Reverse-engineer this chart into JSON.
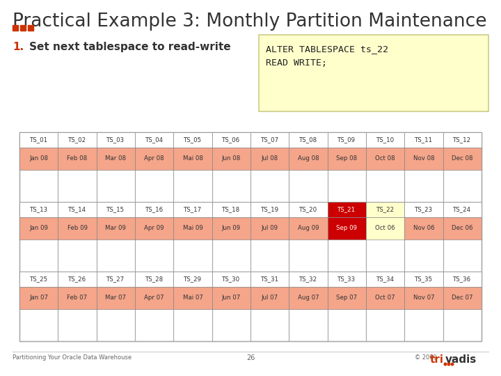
{
  "title": "Practical Example 3: Monthly Partition Maintenance",
  "title_fontsize": 19,
  "title_color": "#333333",
  "bg_color": "#ffffff",
  "step_number": "1.",
  "step_text": "Set next tablespace to read-write",
  "code_text": "ALTER TABLESPACE ts_22\nREAD WRITE;",
  "code_box_color": "#ffffcc",
  "code_box_border": "#cccc88",
  "footer_left": "Partitioning Your Oracle Data Warehouse",
  "footer_center": "26",
  "footer_right": "© 2009",
  "rows": [
    {
      "ts_labels": [
        "TS_01",
        "TS_02",
        "TS_03",
        "TS_04",
        "TS_05",
        "TS_06",
        "TS_07",
        "TS_08",
        "TS_09",
        "TS_10",
        "TS_11",
        "TS_12"
      ],
      "month_labels": [
        "Jan 08",
        "Feb 08",
        "Mar 08",
        "Apr 08",
        "Mai 08",
        "Jun 08",
        "Jul 08",
        "Aug 08",
        "Sep 08",
        "Oct 08",
        "Nov 08",
        "Dec 08"
      ],
      "cell_colors": [
        "#f4a58a",
        "#f4a58a",
        "#f4a58a",
        "#f4a58a",
        "#f4a58a",
        "#f4a58a",
        "#f4a58a",
        "#f4a58a",
        "#f4a58a",
        "#f4a58a",
        "#f4a58a",
        "#f4a58a"
      ],
      "ts_bg_colors": [
        "white",
        "white",
        "white",
        "white",
        "white",
        "white",
        "white",
        "white",
        "white",
        "white",
        "white",
        "white"
      ],
      "ts_txt_colors": [
        "#333333",
        "#333333",
        "#333333",
        "#333333",
        "#333333",
        "#333333",
        "#333333",
        "#333333",
        "#333333",
        "#333333",
        "#333333",
        "#333333"
      ],
      "mo_txt_colors": [
        "#333333",
        "#333333",
        "#333333",
        "#333333",
        "#333333",
        "#333333",
        "#333333",
        "#333333",
        "#333333",
        "#333333",
        "#333333",
        "#333333"
      ]
    },
    {
      "ts_labels": [
        "TS_13",
        "TS_14",
        "TS_15",
        "TS_16",
        "TS_17",
        "TS_18",
        "TS_19",
        "TS_20",
        "TS_21",
        "TS_22",
        "TS_23",
        "TS_24"
      ],
      "month_labels": [
        "Jan 09",
        "Feb 09",
        "Mar 09",
        "Apr 09",
        "Mai 09",
        "Jun 09",
        "Jul 09",
        "Aug 09",
        "Sep 09",
        "Oct 06",
        "Nov 06",
        "Dec 06"
      ],
      "cell_colors": [
        "#f4a58a",
        "#f4a58a",
        "#f4a58a",
        "#f4a58a",
        "#f4a58a",
        "#f4a58a",
        "#f4a58a",
        "#f4a58a",
        "#cc0000",
        "#ffffcc",
        "#f4a58a",
        "#f4a58a"
      ],
      "ts_bg_colors": [
        "white",
        "white",
        "white",
        "white",
        "white",
        "white",
        "white",
        "white",
        "#cc0000",
        "#ffffcc",
        "white",
        "white"
      ],
      "ts_txt_colors": [
        "#333333",
        "#333333",
        "#333333",
        "#333333",
        "#333333",
        "#333333",
        "#333333",
        "#333333",
        "#ffffff",
        "#333333",
        "#333333",
        "#333333"
      ],
      "mo_txt_colors": [
        "#333333",
        "#333333",
        "#333333",
        "#333333",
        "#333333",
        "#333333",
        "#333333",
        "#333333",
        "#ffffff",
        "#333333",
        "#333333",
        "#333333"
      ]
    },
    {
      "ts_labels": [
        "TS_25",
        "TS_26",
        "TS_27",
        "TS_28",
        "TS_29",
        "TS_30",
        "TS_31",
        "TS_32",
        "TS_33",
        "TS_34",
        "TS_35",
        "TS_36"
      ],
      "month_labels": [
        "Jan 07",
        "Feb 07",
        "Mar 07",
        "Apr 07",
        "Mai 07",
        "Jun 07",
        "Jul 07",
        "Aug 07",
        "Sep 07",
        "Oct 07",
        "Nov 07",
        "Dec 07"
      ],
      "cell_colors": [
        "#f4a58a",
        "#f4a58a",
        "#f4a58a",
        "#f4a58a",
        "#f4a58a",
        "#f4a58a",
        "#f4a58a",
        "#f4a58a",
        "#f4a58a",
        "#f4a58a",
        "#f4a58a",
        "#f4a58a"
      ],
      "ts_bg_colors": [
        "white",
        "white",
        "white",
        "white",
        "white",
        "white",
        "white",
        "white",
        "white",
        "white",
        "white",
        "white"
      ],
      "ts_txt_colors": [
        "#333333",
        "#333333",
        "#333333",
        "#333333",
        "#333333",
        "#333333",
        "#333333",
        "#333333",
        "#333333",
        "#333333",
        "#333333",
        "#333333"
      ],
      "mo_txt_colors": [
        "#333333",
        "#333333",
        "#333333",
        "#333333",
        "#333333",
        "#333333",
        "#333333",
        "#333333",
        "#333333",
        "#333333",
        "#333333",
        "#333333"
      ]
    }
  ],
  "trivadis_red": "#cc3300"
}
